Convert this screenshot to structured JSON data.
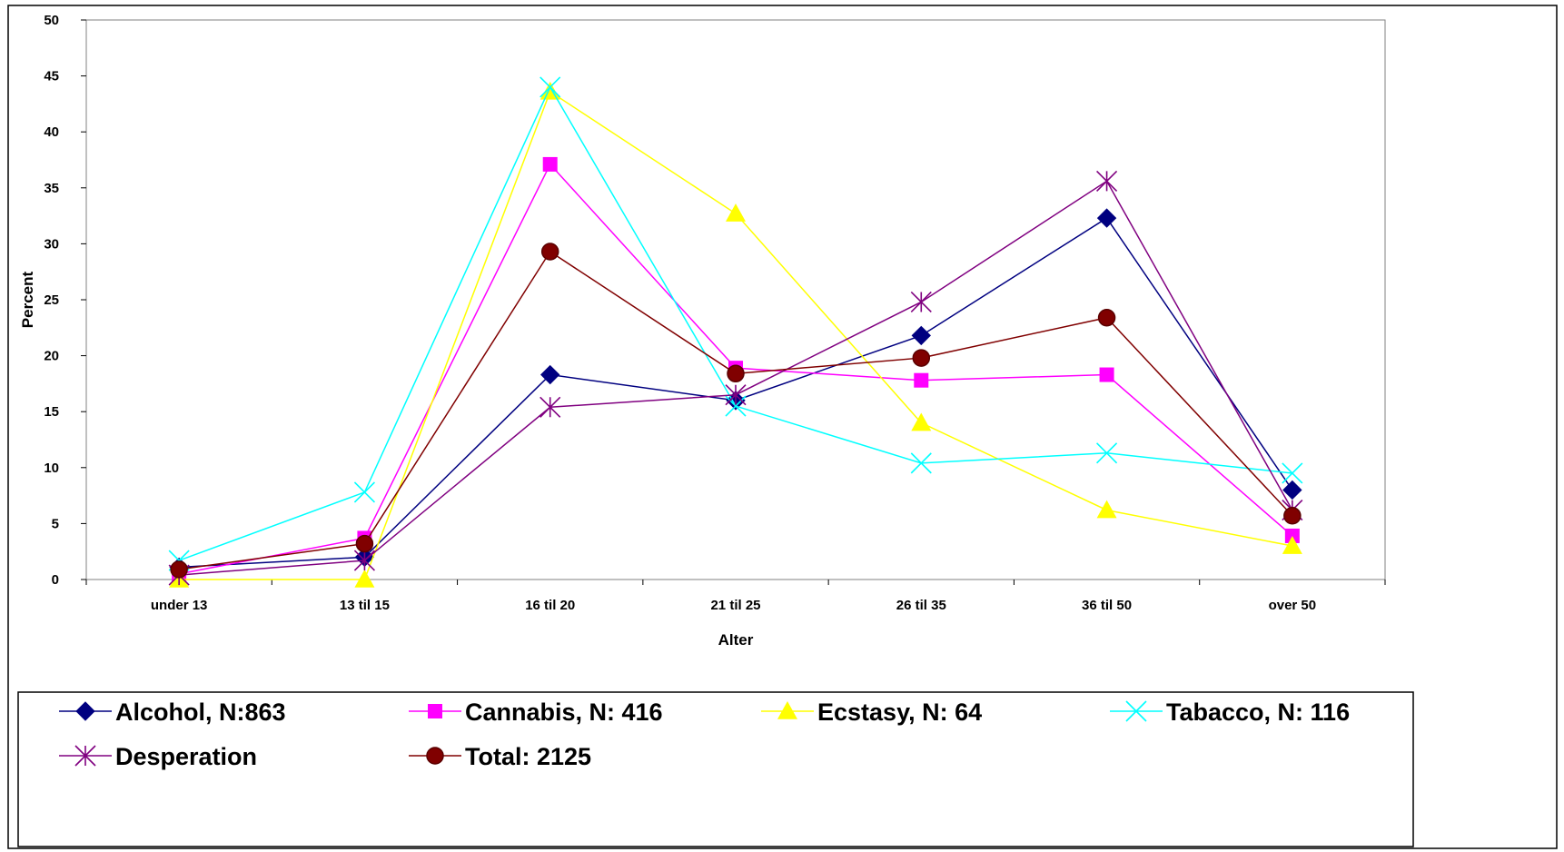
{
  "chart_data": {
    "type": "line",
    "title": "",
    "xlabel": "Alter",
    "ylabel": "Percent",
    "ylim": [
      0,
      50
    ],
    "yticks": [
      0,
      5,
      10,
      15,
      20,
      25,
      30,
      35,
      40,
      45,
      50
    ],
    "grid": false,
    "legend_position": "bottom",
    "categories": [
      "under 13",
      "13 til 15",
      "16 til 20",
      "21 til 25",
      "26 til 35",
      "36 til 50",
      "over 50"
    ],
    "series": [
      {
        "name": "Alcohol, N:863",
        "color": "#000080",
        "marker": "diamond",
        "values": [
          1.1,
          2.0,
          18.3,
          16.0,
          21.8,
          32.3,
          8.0
        ]
      },
      {
        "name": "Cannabis, N: 416",
        "color": "#FF00FF",
        "marker": "square",
        "values": [
          0.5,
          3.7,
          37.1,
          18.9,
          17.8,
          18.3,
          3.9
        ]
      },
      {
        "name": "Ecstasy, N: 64",
        "color": "#FFFF00",
        "marker": "triangle",
        "values": [
          0.0,
          0.0,
          43.6,
          32.7,
          14.0,
          6.2,
          3.0
        ]
      },
      {
        "name": "Tabacco, N: 116",
        "color": "#00FFFF",
        "marker": "x",
        "values": [
          1.7,
          7.8,
          44.0,
          15.5,
          10.4,
          11.3,
          9.5
        ]
      },
      {
        "name": "Desperation",
        "color": "#800080",
        "marker": "star",
        "values": [
          0.4,
          1.7,
          15.4,
          16.5,
          24.8,
          35.6,
          6.2
        ]
      },
      {
        "name": "Total: 2125",
        "color": "#800000",
        "marker": "circle",
        "values": [
          0.9,
          3.2,
          29.3,
          18.4,
          19.8,
          23.4,
          5.7
        ]
      }
    ]
  }
}
